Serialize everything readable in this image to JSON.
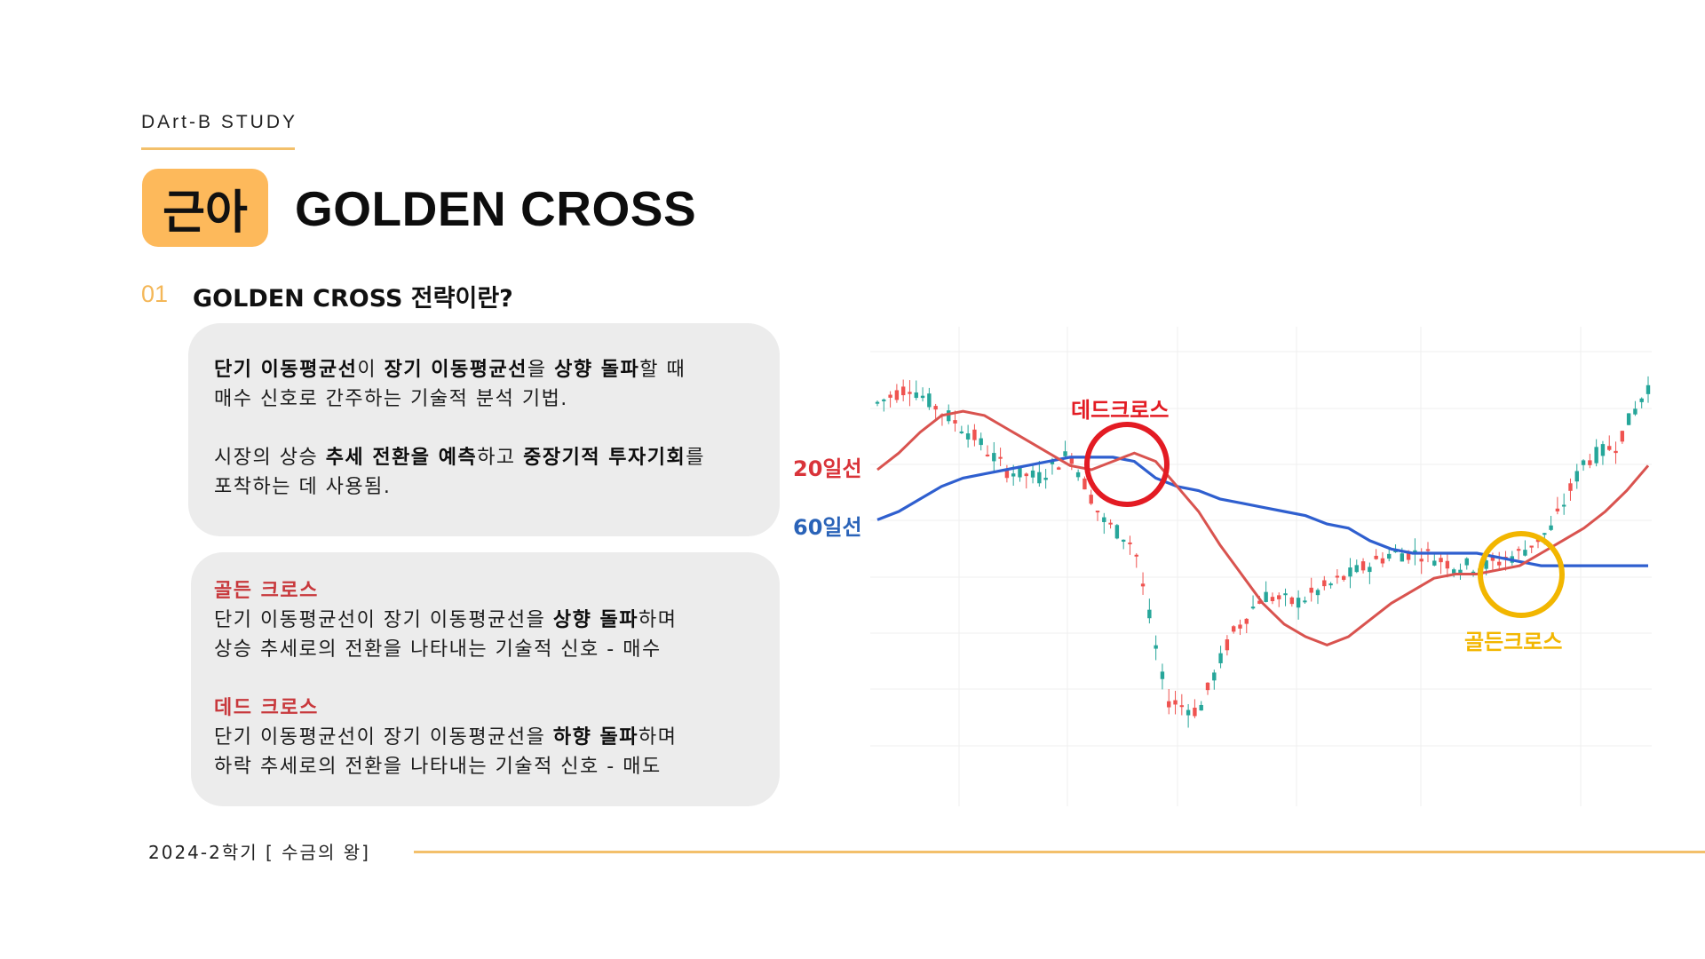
{
  "header": {
    "brand": "DArt-B STUDY",
    "badge": "근아",
    "title": "GOLDEN CROSS"
  },
  "section": {
    "number": "01",
    "title": "GOLDEN CROSS 전략이란?"
  },
  "box1": {
    "line1": [
      "단기 이동평균선",
      "이 ",
      "장기 이동평균선",
      "을 ",
      "상향 돌파",
      "할 때"
    ],
    "line2": "매수 신호로 간주하는 기술적 분석 기법.",
    "line3": [
      "시장의 상승 ",
      "추세 전환을 예측",
      "하고 ",
      "중장기적 투자기회",
      "를"
    ],
    "line4": "포착하는 데 사용됨."
  },
  "box2": {
    "golden_heading": "골든 크로스",
    "golden_line1": [
      "단기 이동평균선이 장기 이동평균선을 ",
      "상향 돌파",
      "하며"
    ],
    "golden_line2": "상승 추세로의 전환을 나타내는 기술적 신호 - 매수",
    "dead_heading": "데드 크로스",
    "dead_line1": [
      "단기 이동평균선이 장기 이동평균선을 ",
      "하향 돌파",
      "하며"
    ],
    "dead_line2": "하락 추세로의 전환을 나타내는 기술적 신호 - 매도"
  },
  "chart_labels": {
    "ma20": "20일선",
    "ma60": "60일선",
    "dead_cross": "데드크로스",
    "golden_cross": "골든크로스"
  },
  "footer": {
    "text": "2024-2학기 [ 수금의 왕]"
  },
  "colors": {
    "accent": "#fdb95b",
    "ma20": "#d9534f",
    "ma60": "#2f5fcf",
    "dead": "#e31b23",
    "golden": "#f2b600",
    "up": "#26a69a",
    "down": "#ef5350"
  },
  "chart_data": {
    "type": "line",
    "series": [
      {
        "name": "20일선",
        "values": [
          0.7,
          0.74,
          0.79,
          0.83,
          0.84,
          0.83,
          0.8,
          0.77,
          0.74,
          0.71,
          0.7,
          0.72,
          0.74,
          0.72,
          0.66,
          0.6,
          0.52,
          0.45,
          0.38,
          0.33,
          0.3,
          0.28,
          0.3,
          0.34,
          0.38,
          0.41,
          0.44,
          0.45,
          0.45,
          0.46,
          0.47,
          0.5,
          0.53,
          0.56,
          0.6,
          0.65,
          0.71
        ]
      },
      {
        "name": "60일선",
        "values": [
          0.58,
          0.6,
          0.63,
          0.66,
          0.68,
          0.69,
          0.7,
          0.71,
          0.72,
          0.73,
          0.73,
          0.73,
          0.72,
          0.68,
          0.66,
          0.65,
          0.63,
          0.62,
          0.61,
          0.6,
          0.59,
          0.57,
          0.56,
          0.53,
          0.51,
          0.5,
          0.5,
          0.5,
          0.5,
          0.49,
          0.48,
          0.47,
          0.47,
          0.47,
          0.47,
          0.47,
          0.47
        ]
      }
    ]
  }
}
